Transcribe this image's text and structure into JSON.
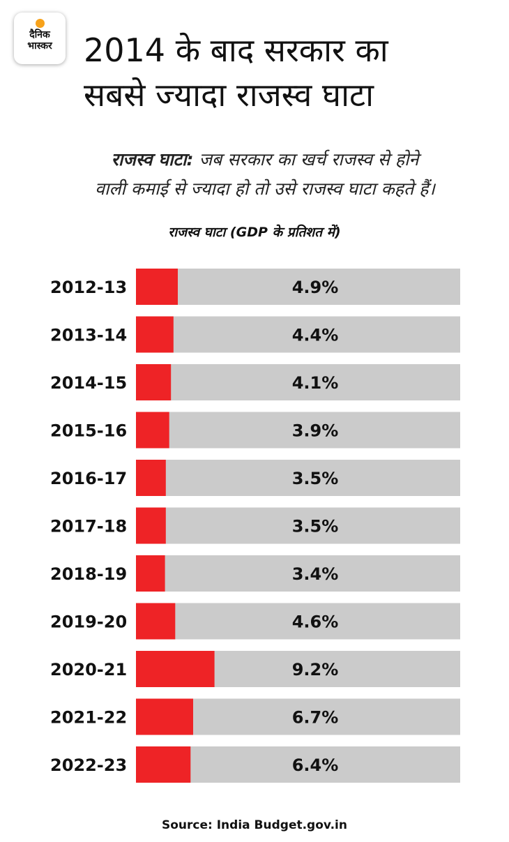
{
  "brand": {
    "logo_line1": "दैनिक",
    "logo_line2": "भास्कर"
  },
  "headline": {
    "line1": "2014 के बाद सरकार का",
    "line2": "सबसे ज्यादा राजस्व घाटा"
  },
  "definition": {
    "term": "राजस्व घाटा:",
    "line1_rest": " जब सरकार का खर्च राजस्व से होने",
    "line2": "वाली कमाई से ज्यादा हो तो उसे राजस्व घाटा कहते हैं।"
  },
  "source": "Source: India Budget.gov.in",
  "colors": {
    "bar_fill": "#ee2326",
    "bar_track": "#cbcbcb",
    "text": "#111111",
    "logo_sun": "#f7a21b"
  },
  "chart_data": {
    "type": "bar",
    "orientation": "horizontal",
    "title": "राजस्व घाटा (GDP के प्रतिशत में)",
    "categories": [
      "2012-13",
      "2013-14",
      "2014-15",
      "2015-16",
      "2016-17",
      "2017-18",
      "2018-19",
      "2019-20",
      "2020-21",
      "2021-22",
      "2022-23"
    ],
    "values": [
      4.9,
      4.4,
      4.1,
      3.9,
      3.5,
      3.5,
      3.4,
      4.6,
      9.2,
      6.7,
      6.4
    ],
    "value_labels": [
      "4.9%",
      "4.4%",
      "4.1%",
      "3.9%",
      "3.5%",
      "3.5%",
      "3.4%",
      "4.6%",
      "9.2%",
      "6.7%",
      "6.4%"
    ],
    "xlim": [
      0,
      38
    ],
    "unit": "%"
  }
}
